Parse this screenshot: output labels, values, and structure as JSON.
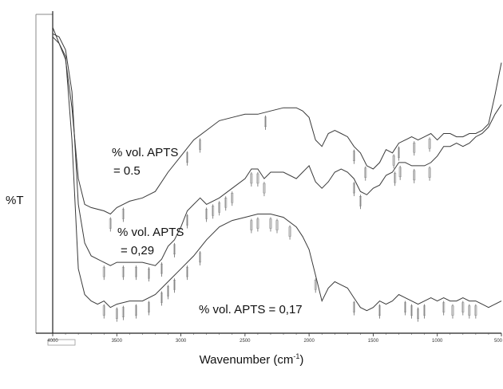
{
  "chart_data": {
    "type": "line",
    "title": "",
    "xlabel": "Wavenumber (cm",
    "xlabel_sup": "-1",
    "xlabel_end": ")",
    "ylabel": "%T",
    "xlim": [
      4000,
      500
    ],
    "ylim": [
      0,
      100
    ],
    "x_ticks": [
      "4000",
      "3500",
      "3000",
      "2500",
      "2000",
      "1500",
      "1000",
      "500"
    ],
    "grid": false,
    "series": [
      {
        "name": "% vol. APTS\n= 0.5",
        "name_lines": [
          "% vol. APTS",
          "= 0.5"
        ],
        "color": "#3a3a3a",
        "x": [
          4000,
          3950,
          3900,
          3850,
          3800,
          3750,
          3700,
          3600,
          3550,
          3500,
          3400,
          3300,
          3200,
          3100,
          3000,
          2900,
          2800,
          2700,
          2600,
          2500,
          2400,
          2300,
          2200,
          2100,
          2050,
          2000,
          1950,
          1900,
          1850,
          1800,
          1750,
          1700,
          1650,
          1600,
          1550,
          1500,
          1450,
          1400,
          1350,
          1300,
          1250,
          1200,
          1150,
          1100,
          1050,
          1000,
          950,
          900,
          850,
          800,
          750,
          700,
          650,
          600,
          550,
          500
        ],
        "y": [
          95,
          90,
          85,
          70,
          48,
          40,
          39,
          38,
          37,
          39,
          41,
          42,
          44,
          50,
          55,
          60,
          63,
          66,
          67,
          68,
          68,
          69,
          70,
          70,
          69,
          67,
          60,
          58,
          62,
          63,
          62,
          61,
          58,
          56,
          52,
          51,
          53,
          57,
          56,
          59,
          60,
          61,
          60,
          61,
          62,
          60,
          62,
          62,
          61,
          61,
          62,
          62,
          63,
          65,
          74,
          84
        ]
      },
      {
        "name": "% vol. APTS\n= 0,29",
        "name_lines": [
          "% vol. APTS",
          "= 0,29"
        ],
        "color": "#3a3a3a",
        "x": [
          4000,
          3950,
          3900,
          3850,
          3800,
          3750,
          3700,
          3650,
          3600,
          3550,
          3500,
          3400,
          3300,
          3200,
          3150,
          3100,
          3050,
          3000,
          2950,
          2900,
          2850,
          2800,
          2700,
          2600,
          2500,
          2450,
          2400,
          2350,
          2300,
          2200,
          2100,
          2050,
          2000,
          1950,
          1900,
          1850,
          1800,
          1750,
          1700,
          1650,
          1600,
          1550,
          1500,
          1450,
          1400,
          1350,
          1300,
          1250,
          1200,
          1150,
          1100,
          1050,
          1000,
          950,
          900,
          850,
          800,
          750,
          700,
          650,
          600,
          550,
          500
        ],
        "y": [
          93,
          92,
          88,
          75,
          40,
          28,
          24,
          23,
          22,
          21,
          22,
          22,
          22,
          21,
          23,
          27,
          29,
          33,
          38,
          40,
          42,
          40,
          42,
          45,
          48,
          51,
          51,
          48,
          50,
          50,
          48,
          50,
          52,
          47,
          45,
          47,
          50,
          51,
          50,
          48,
          44,
          43,
          45,
          46,
          49,
          50,
          53,
          53,
          52,
          52,
          52,
          53,
          55,
          58,
          58,
          59,
          58,
          59,
          61,
          62,
          64,
          68,
          71
        ]
      },
      {
        "name": "% vol. APTS = 0,17",
        "name_lines": [
          "% vol. APTS = 0,17"
        ],
        "color": "#3a3a3a",
        "x": [
          4000,
          3950,
          3900,
          3850,
          3800,
          3750,
          3700,
          3650,
          3600,
          3550,
          3500,
          3400,
          3300,
          3200,
          3100,
          3000,
          2900,
          2800,
          2700,
          2600,
          2500,
          2400,
          2300,
          2200,
          2100,
          2050,
          2000,
          1950,
          1900,
          1850,
          1800,
          1750,
          1700,
          1650,
          1600,
          1550,
          1500,
          1450,
          1400,
          1350,
          1300,
          1250,
          1200,
          1150,
          1100,
          1050,
          1000,
          950,
          900,
          850,
          800,
          750,
          700,
          650,
          600,
          550,
          500
        ],
        "y": [
          92,
          90,
          86,
          60,
          20,
          12,
          10,
          9,
          10,
          8,
          9,
          10,
          10,
          12,
          16,
          20,
          24,
          29,
          33,
          35,
          36,
          37,
          37,
          36,
          33,
          30,
          26,
          18,
          10,
          14,
          16,
          15,
          14,
          11,
          8,
          7,
          8,
          10,
          9,
          10,
          12,
          11,
          10,
          9,
          10,
          11,
          10,
          11,
          10,
          10,
          11,
          10,
          10,
          9,
          8,
          9,
          10
        ]
      }
    ],
    "peak_markers": [
      {
        "series": 0,
        "x": [
          3550,
          3450,
          2950,
          2850,
          2340,
          1650,
          1560,
          1340,
          1300,
          1180,
          1060
        ]
      },
      {
        "series": 1,
        "x": [
          3600,
          3450,
          3350,
          3250,
          3150,
          3050,
          2950,
          2800,
          2750,
          2700,
          2650,
          2600,
          2450,
          2400,
          2350,
          1650,
          1600,
          1330,
          1290,
          1180,
          1060
        ]
      },
      {
        "series": 2,
        "x": [
          3600,
          3500,
          3450,
          3350,
          3250,
          3150,
          3100,
          3050,
          2950,
          2850,
          2450,
          2400,
          2300,
          2250,
          2150,
          1950,
          1650,
          1450,
          1250,
          1200,
          1150,
          1100,
          950,
          880,
          800,
          750,
          700
        ]
      }
    ]
  }
}
